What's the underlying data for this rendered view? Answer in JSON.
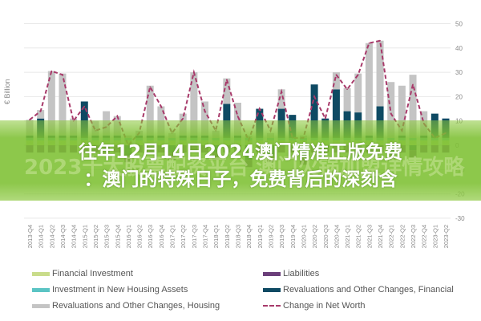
{
  "chart_data": {
    "type": "bar",
    "stacked": true,
    "ylabel": "€ Billion",
    "ylim": [
      -30,
      50
    ],
    "yticks": [
      50,
      40,
      30,
      20,
      10,
      0,
      -10,
      -20,
      -30
    ],
    "y_axis_side": "right",
    "grid": true,
    "legend_position": "bottom",
    "categories": [
      "2013-Q4",
      "2014-Q1",
      "2014-Q2",
      "2014-Q3",
      "2014-Q4",
      "2015-Q1",
      "2015-Q2",
      "2015-Q3",
      "2015-Q4",
      "2016-Q1",
      "2016-Q2",
      "2016-Q3",
      "2016-Q4",
      "2017-Q1",
      "2017-Q2",
      "2017-Q3",
      "2017-Q4",
      "2018-Q1",
      "2018-Q2",
      "2018-Q3",
      "2018-Q4",
      "2019-Q1",
      "2019-Q2",
      "2019-Q3",
      "2019-Q4",
      "2020-Q1",
      "2020-Q2",
      "2020-Q3",
      "2020-Q4",
      "2021-Q1",
      "2021-Q2",
      "2021-Q3",
      "2021-Q4",
      "2022-Q1",
      "2022-Q2",
      "2022-Q3",
      "2022-Q4",
      "2023-Q1",
      "2023-Q2"
    ],
    "series": [
      {
        "name": "Financial Investment",
        "kind": "bar",
        "color": "#c9dc8a",
        "values": [
          2,
          2,
          2,
          2,
          2,
          2,
          2,
          2,
          2,
          2,
          2,
          2,
          2,
          2,
          2,
          2,
          2,
          2,
          2,
          2,
          2,
          2,
          2,
          2,
          2,
          2,
          2,
          2,
          2,
          2,
          2,
          2,
          2,
          2,
          2,
          2,
          2,
          2,
          2
        ]
      },
      {
        "name": "Investment in New Housing Assets",
        "kind": "bar",
        "color": "#5bc4c4",
        "values": [
          1,
          1,
          1,
          1,
          1,
          1,
          1,
          1,
          1,
          1,
          1,
          1,
          1,
          1,
          1,
          1,
          1,
          1,
          1,
          1,
          1,
          1,
          1,
          1,
          1,
          1,
          1,
          1,
          1,
          1,
          1,
          1,
          1,
          1,
          1,
          1,
          1,
          1,
          1
        ]
      },
      {
        "name": "Revaluations and Other Changes, Financial",
        "kind": "bar",
        "color": "#0e4a63",
        "values": [
          1,
          8,
          1,
          1,
          1,
          15,
          1,
          1,
          1,
          -4,
          1,
          1,
          1,
          -3,
          1,
          1,
          1,
          -3,
          14,
          1,
          -6,
          12,
          -4,
          12,
          9.5,
          -5,
          22,
          8,
          20,
          11,
          10.5,
          1,
          13,
          -3,
          1,
          -2,
          1,
          10,
          8
        ]
      },
      {
        "name": "Revaluations and Other Changes, Housing",
        "kind": "bar",
        "color": "#c4c4c4",
        "values": [
          6.5,
          3.5,
          26.5,
          25.5,
          7,
          0,
          6,
          10,
          8,
          1,
          2,
          20.5,
          12,
          2,
          9,
          26,
          14,
          3,
          10.5,
          13.5,
          1,
          0,
          2,
          8,
          0,
          1,
          0,
          0,
          7,
          9.5,
          16,
          38,
          27,
          23,
          20.5,
          26,
          10,
          0,
          0
        ]
      },
      {
        "name": "Liabilities",
        "kind": "bar",
        "color": "#6b3f7a",
        "values": [
          -3,
          -3,
          -3,
          -3,
          -3,
          -3,
          -3,
          -3,
          -3,
          -3,
          -3,
          -3,
          -3,
          -3,
          -3,
          -3,
          -3,
          -3,
          -3,
          -3,
          -3,
          -3,
          -3,
          -3,
          -3,
          -3,
          -3,
          -3,
          -3,
          -3,
          -3,
          -3,
          -3,
          -3,
          -3,
          -3,
          -3,
          -3,
          -3
        ]
      },
      {
        "name": "Change in Net Worth",
        "kind": "line",
        "style": "dashed",
        "color": "#a83a6a",
        "values": [
          10.5,
          14,
          30.5,
          29,
          10,
          16,
          6,
          7.5,
          12,
          0,
          5,
          24,
          16,
          5,
          11,
          30,
          14,
          6,
          27,
          12,
          2,
          15,
          6,
          22,
          3,
          3,
          20,
          11,
          29,
          23,
          29,
          42,
          43,
          13,
          6,
          25,
          9,
          3,
          5
        ]
      }
    ]
  },
  "legend": [
    {
      "label": "Financial Investment",
      "color": "#c9dc8a",
      "style": "box"
    },
    {
      "label": "Liabilities",
      "color": "#6b3f7a",
      "style": "box"
    },
    {
      "label": "Investment in New Housing Assets",
      "color": "#5bc4c4",
      "style": "box"
    },
    {
      "label": "Revaluations and Other Changes, Financial",
      "color": "#0e4a63",
      "style": "box"
    },
    {
      "label": "Revaluations and Other Changes, Housing",
      "color": "#c4c4c4",
      "style": "box"
    },
    {
      "label": "Change in Net Worth",
      "color": "#a83a6a",
      "style": "dash"
    }
  ],
  "banner": {
    "title_line1": "往年12月14日2024澳门精准正版免费",
    "title_line2": "：澳门的特殊日子，免费背后的深刻含",
    "background_text": "2023十大股票配资平台 澳门火锅加盟详情攻略",
    "color": "#7dc032"
  }
}
